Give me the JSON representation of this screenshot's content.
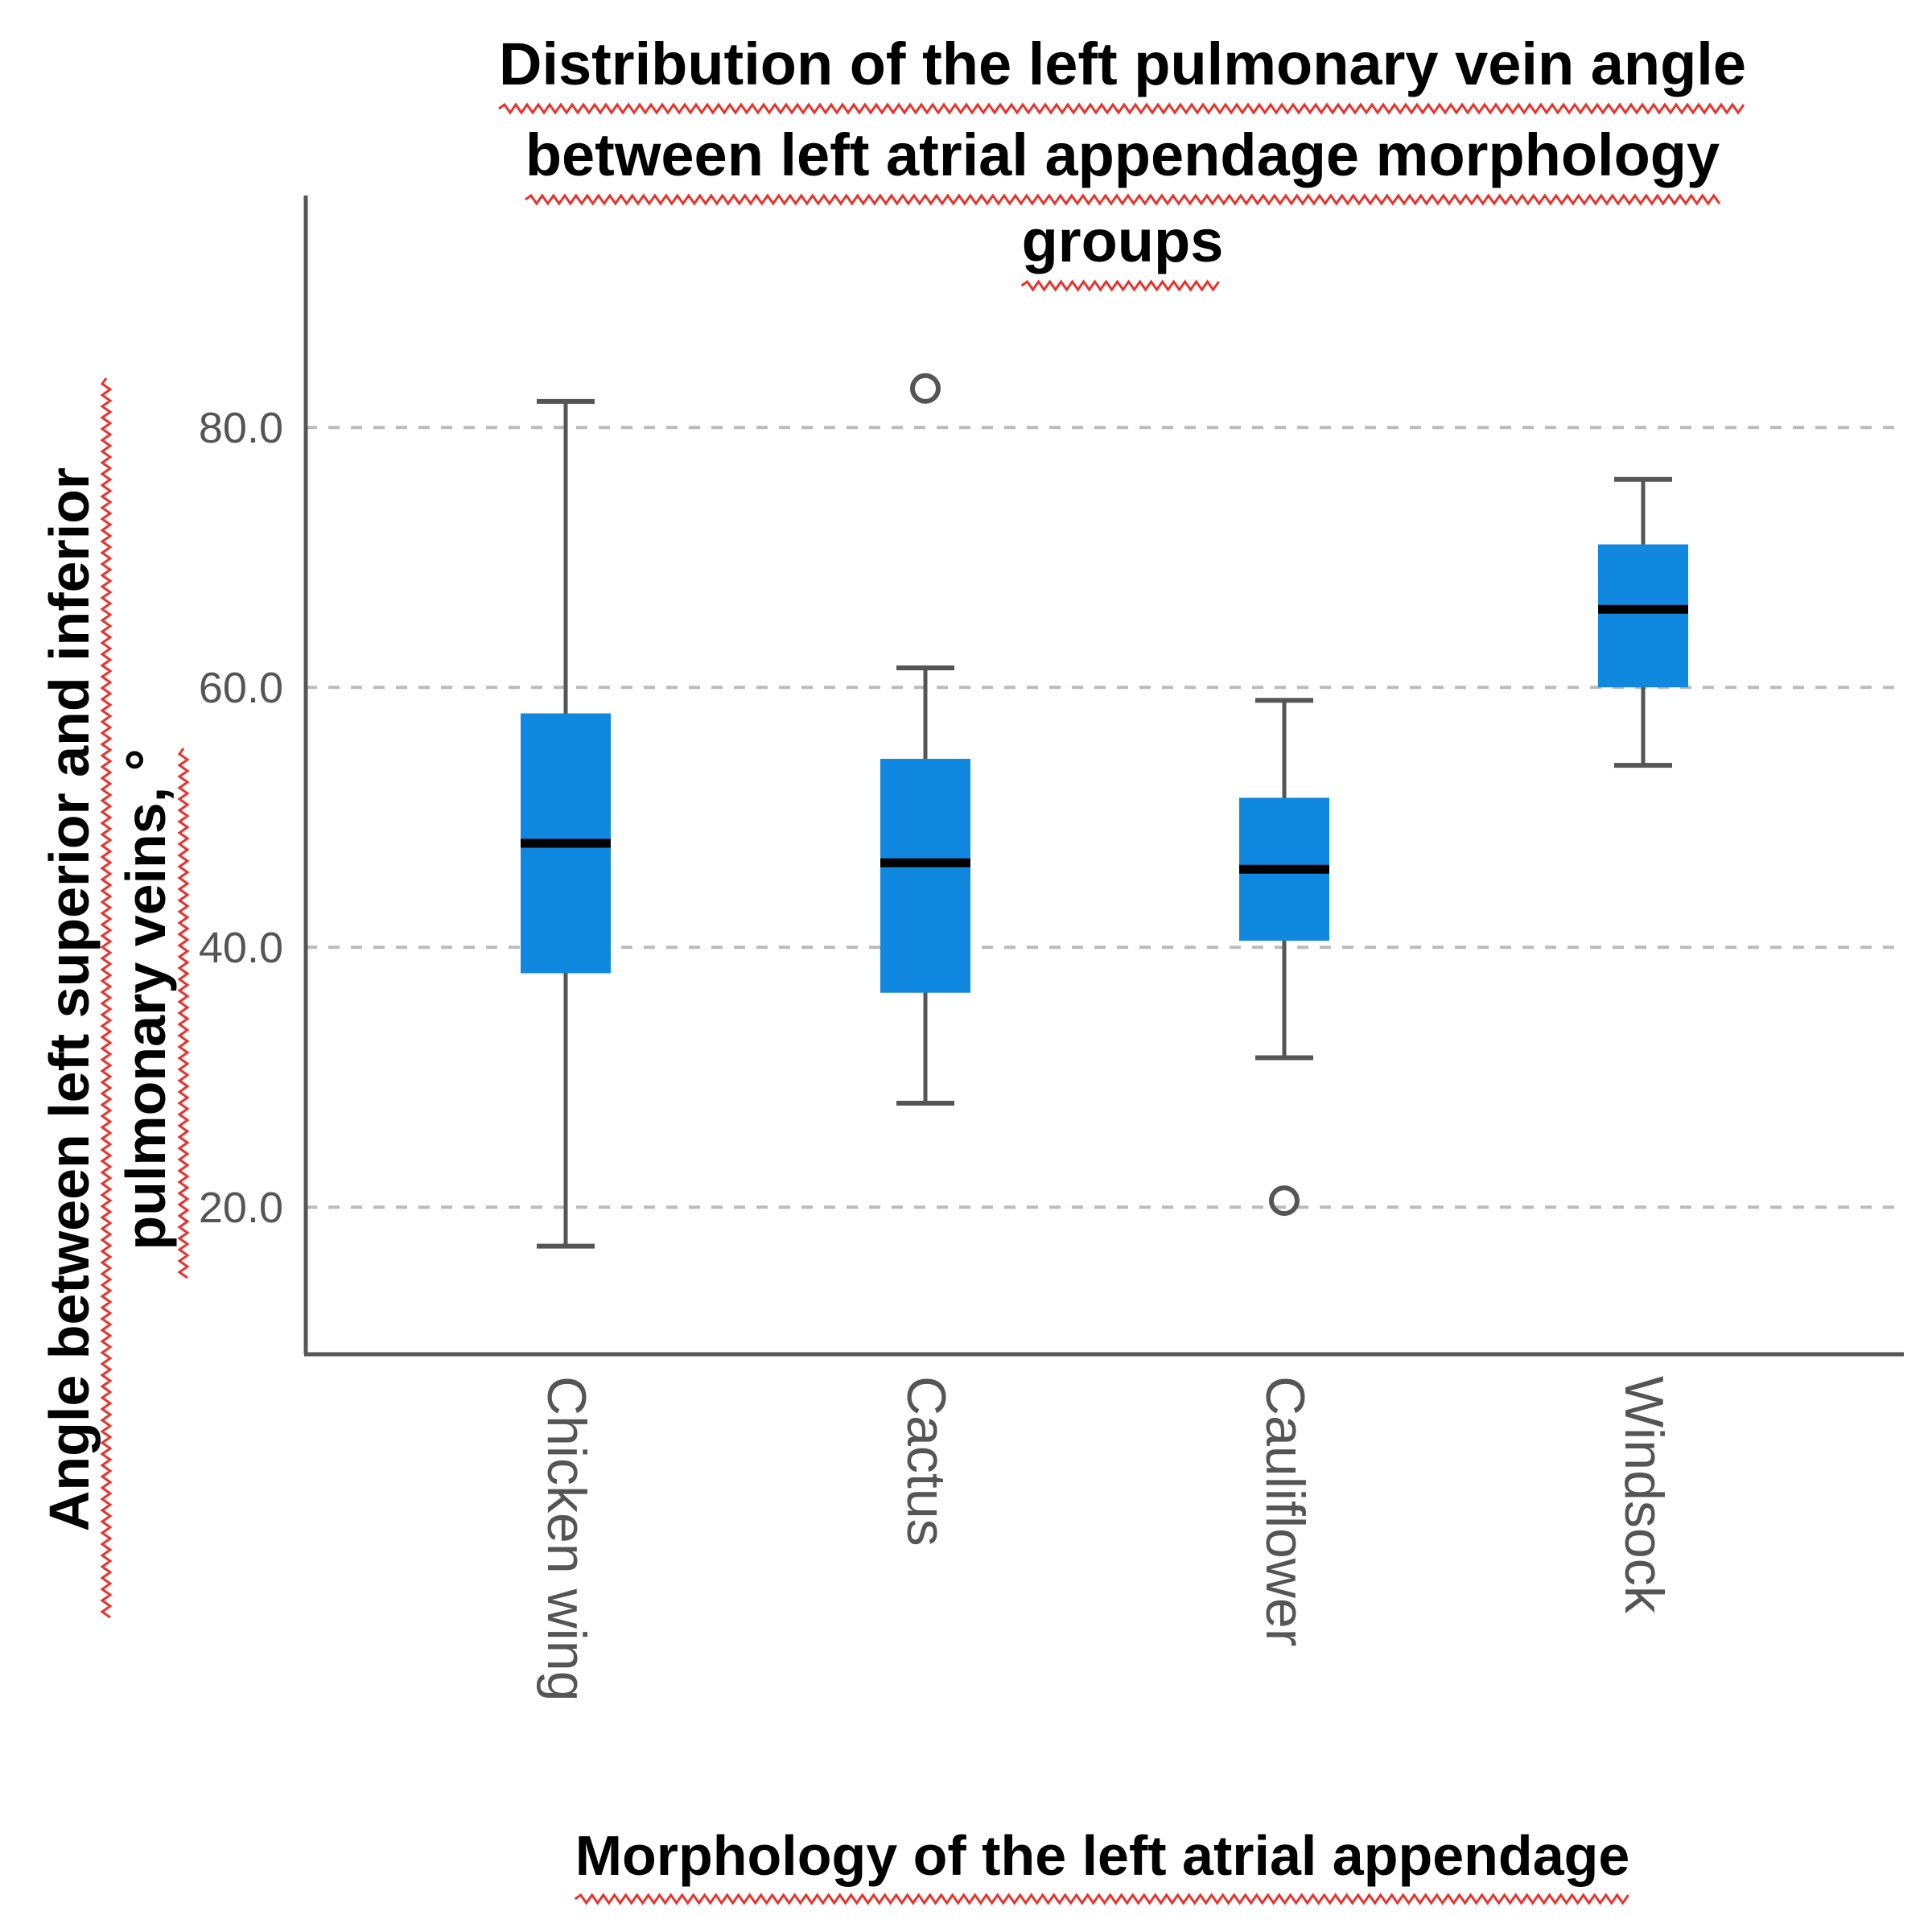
{
  "chart_data": {
    "type": "box",
    "title": "Distribution of the left pulmonary vein angle between left atrial appendage morphology groups",
    "title_lines": [
      "Distribution of the left pulmonary vein angle",
      "between left atrial appendage morphology",
      "groups"
    ],
    "xlabel": "Morphology of the left atrial appendage",
    "ylabel": "Angle between left superior and inferior pulmonary veins, °",
    "ylabel_lines": [
      "Angle between left superior and inferior",
      "pulmonary veins, °"
    ],
    "ylim": [
      10,
      97
    ],
    "yticks": [
      20,
      40,
      60,
      80
    ],
    "ytick_labels": [
      "20.0",
      "40.0",
      "60.0",
      "80.0"
    ],
    "grid": "horizontal dashed",
    "categories": [
      "Chicken wing",
      "Cactus",
      "Cauliflower",
      "Windsock"
    ],
    "boxes": [
      {
        "category": "Chicken wing",
        "whisker_low": 17.0,
        "q1": 38.0,
        "median": 48.0,
        "q3": 58.0,
        "whisker_high": 82.0,
        "outliers": []
      },
      {
        "category": "Cactus",
        "whisker_low": 28.0,
        "q1": 36.5,
        "median": 46.5,
        "q3": 54.5,
        "whisker_high": 61.5,
        "outliers": [
          83.0
        ]
      },
      {
        "category": "Cauliflower",
        "whisker_low": 31.5,
        "q1": 40.5,
        "median": 46.0,
        "q3": 51.5,
        "whisker_high": 59.0,
        "outliers": [
          20.5
        ]
      },
      {
        "category": "Windsock",
        "whisker_low": 54.0,
        "q1": 60.0,
        "median": 66.0,
        "q3": 71.0,
        "whisker_high": 76.0,
        "outliers": []
      }
    ],
    "colors": {
      "box_fill": "#1188e0",
      "median": "#000000",
      "whisker": "#555555",
      "axis": "#555555",
      "grid": "#bbbbbb",
      "spellcheck_underline": "#e8332d"
    }
  }
}
